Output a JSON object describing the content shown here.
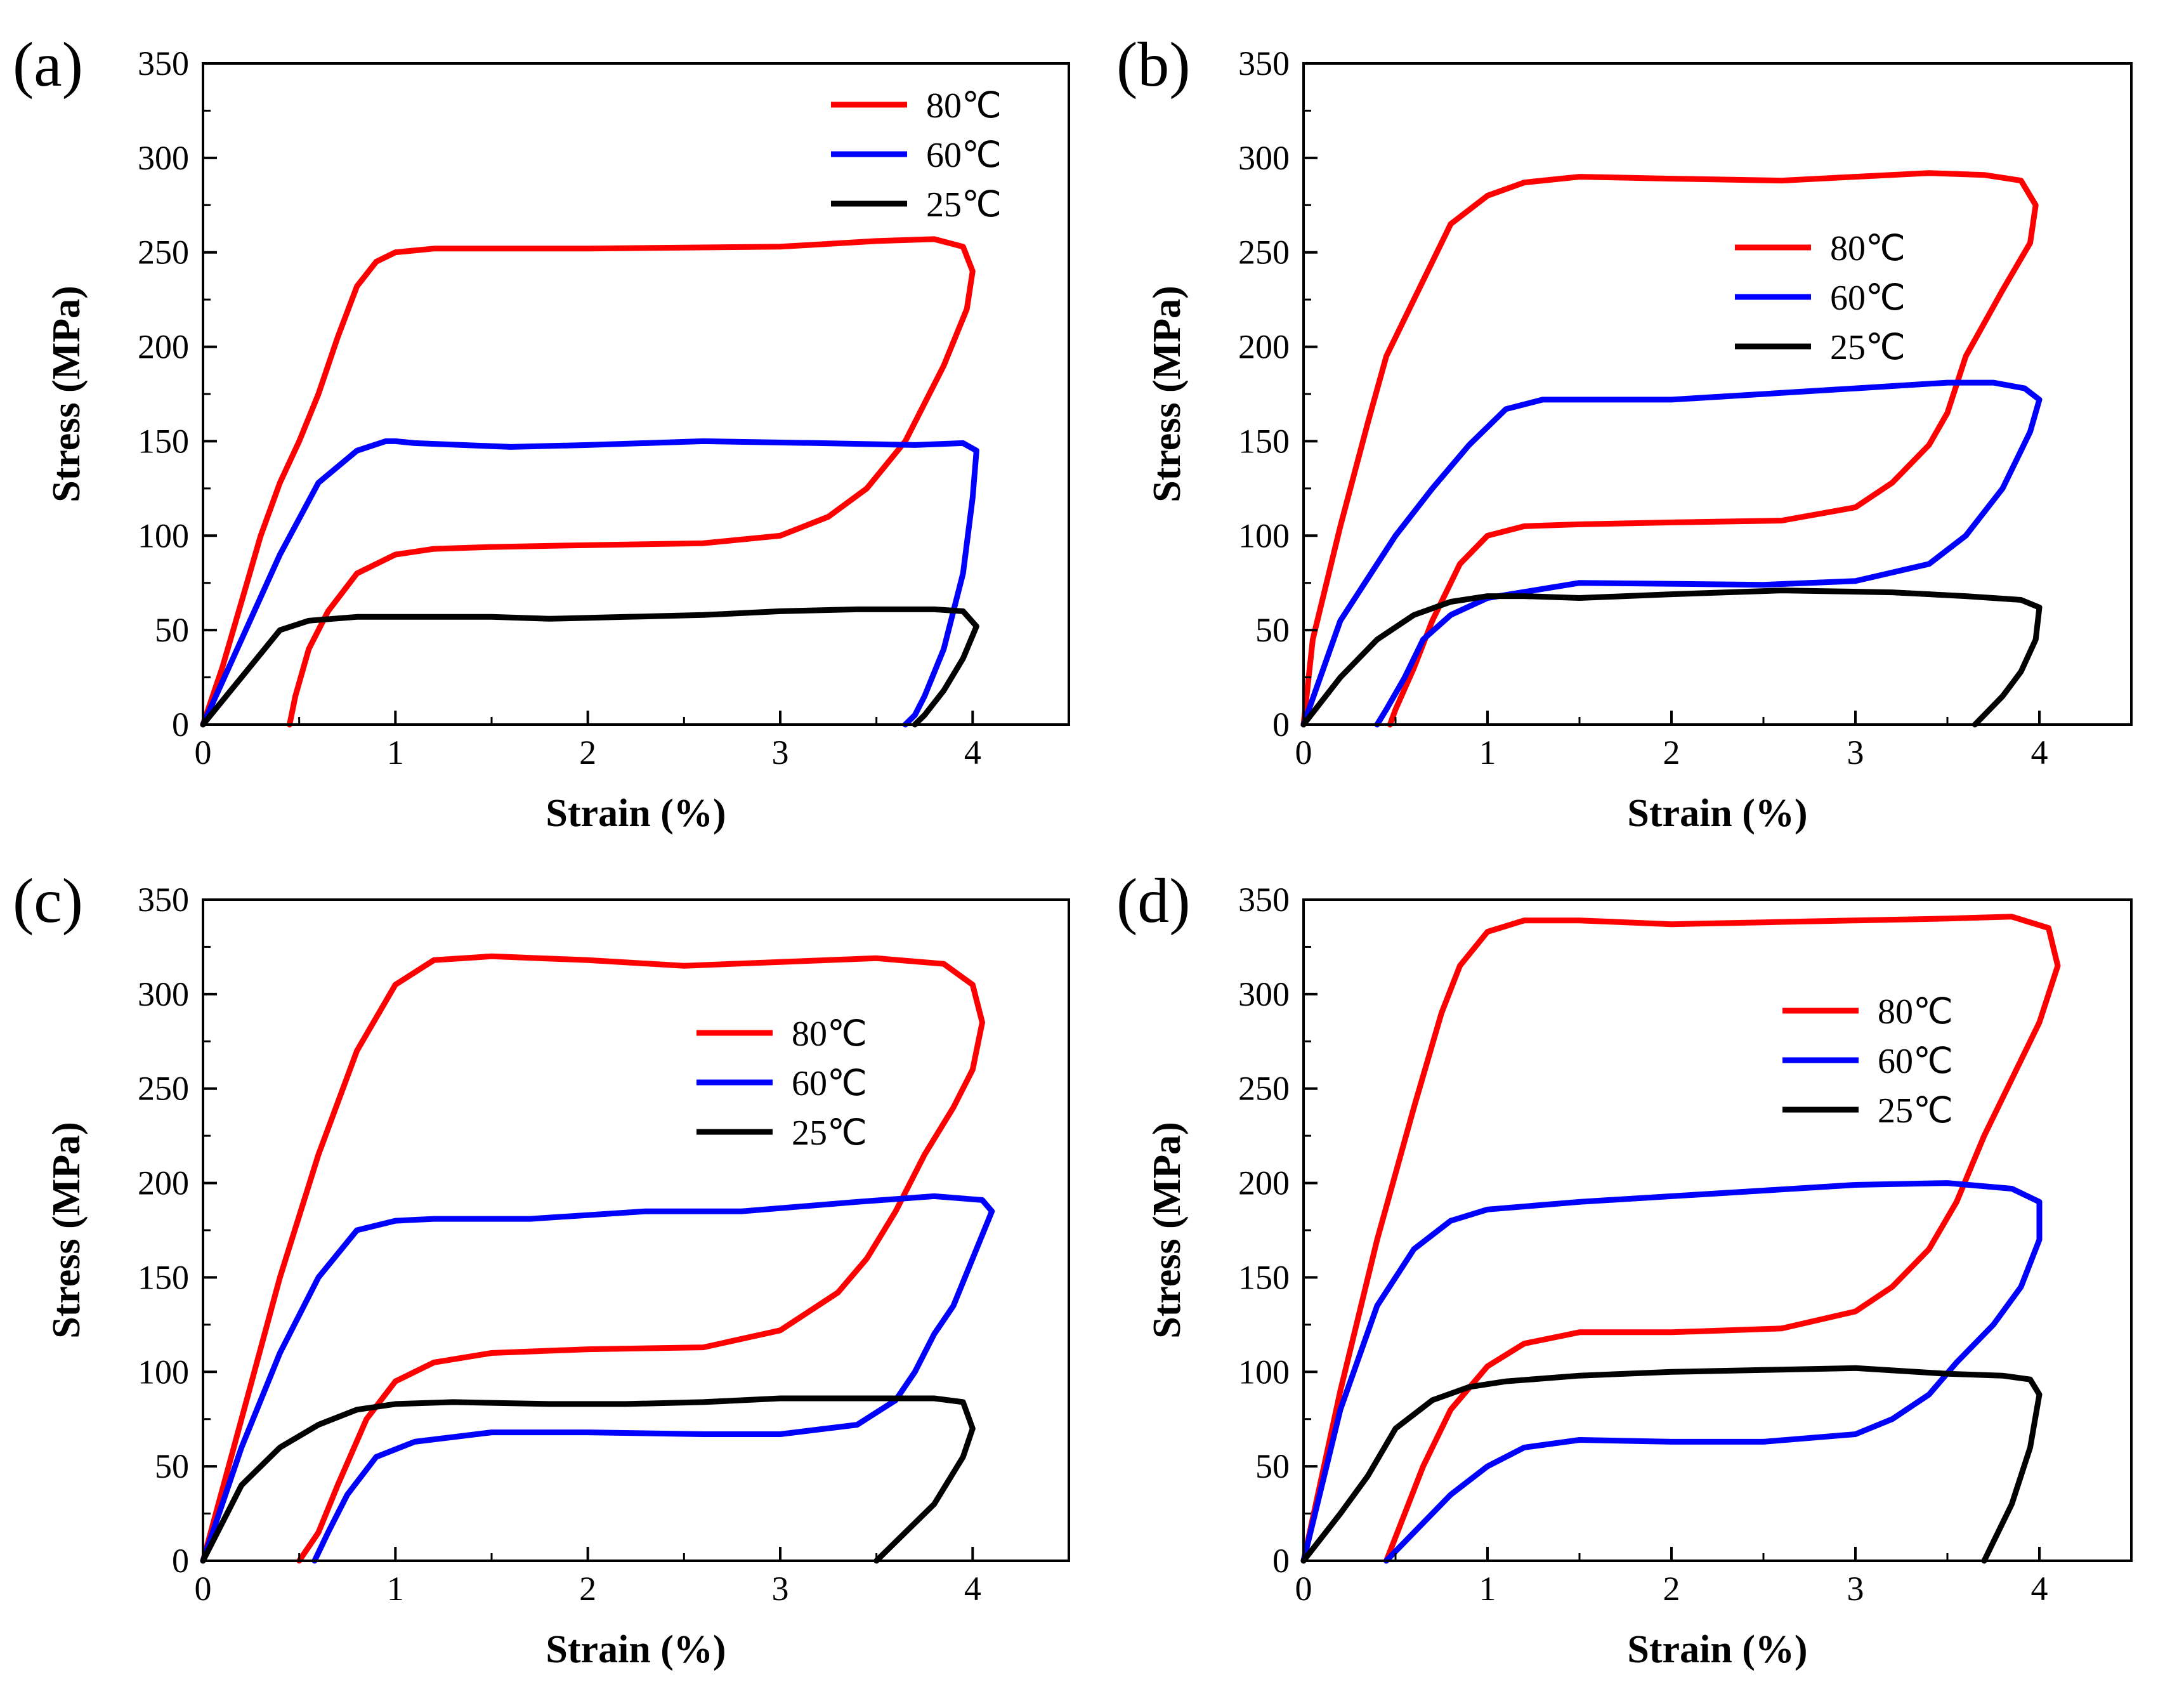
{
  "chart_data": [
    {
      "type": "line",
      "panel_label": "(a)",
      "xlabel": "Strain (%)",
      "ylabel": "Stress (MPa)",
      "xlim": [
        0,
        4.5
      ],
      "ylim": [
        0,
        350
      ],
      "xticks": [
        0,
        1,
        2,
        3,
        4
      ],
      "yticks": [
        0,
        50,
        100,
        150,
        200,
        250,
        300,
        350
      ],
      "legend_position": "top-right",
      "series": [
        {
          "name": "80℃",
          "color": "#ff0000",
          "x": [
            0,
            0.1,
            0.2,
            0.3,
            0.4,
            0.5,
            0.6,
            0.7,
            0.8,
            0.9,
            1.0,
            1.2,
            2.0,
            3.0,
            3.5,
            3.8,
            3.95,
            4.0,
            3.97,
            3.85,
            3.65,
            3.45,
            3.25,
            3.0,
            2.6,
            2.0,
            1.5,
            1.2,
            1.0,
            0.8,
            0.65,
            0.55,
            0.48,
            0.45
          ],
          "y": [
            0,
            30,
            65,
            100,
            128,
            150,
            175,
            205,
            232,
            245,
            250,
            252,
            252,
            253,
            256,
            257,
            253,
            240,
            220,
            190,
            150,
            125,
            110,
            100,
            96,
            95,
            94,
            93,
            90,
            80,
            60,
            40,
            15,
            0
          ]
        },
        {
          "name": "60℃",
          "color": "#0000ff",
          "x": [
            0,
            0.2,
            0.4,
            0.6,
            0.8,
            0.95,
            1.0,
            1.1,
            1.6,
            2.0,
            2.6,
            3.2,
            3.7,
            3.95,
            4.02,
            4.0,
            3.95,
            3.85,
            3.75,
            3.7,
            3.65
          ],
          "y": [
            0,
            45,
            90,
            128,
            145,
            150,
            150,
            149,
            147,
            148,
            150,
            149,
            148,
            149,
            145,
            120,
            80,
            40,
            15,
            5,
            0
          ]
        },
        {
          "name": "25℃",
          "color": "#000000",
          "x": [
            0,
            0.2,
            0.4,
            0.55,
            0.8,
            1.0,
            1.5,
            1.8,
            2.2,
            2.6,
            3.0,
            3.4,
            3.8,
            3.95,
            4.02,
            3.95,
            3.85,
            3.75,
            3.7
          ],
          "y": [
            0,
            25,
            50,
            55,
            57,
            57,
            57,
            56,
            57,
            58,
            60,
            61,
            61,
            60,
            52,
            35,
            18,
            5,
            0
          ]
        }
      ]
    },
    {
      "type": "line",
      "panel_label": "(b)",
      "xlabel": "Strain (%)",
      "ylabel": "Stress (MPa)",
      "xlim": [
        0,
        4.5
      ],
      "ylim": [
        0,
        350
      ],
      "xticks": [
        0,
        1,
        2,
        3,
        4
      ],
      "yticks": [
        0,
        50,
        100,
        150,
        200,
        250,
        300,
        350
      ],
      "legend_position": "upper-right",
      "series": [
        {
          "name": "80℃",
          "color": "#ff0000",
          "x": [
            0,
            0.05,
            0.2,
            0.35,
            0.45,
            0.55,
            0.65,
            0.8,
            1.0,
            1.2,
            1.5,
            2.0,
            2.6,
            3.0,
            3.4,
            3.7,
            3.9,
            3.98,
            3.95,
            3.8,
            3.6,
            3.5,
            3.4,
            3.2,
            3.0,
            2.6,
            2.0,
            1.5,
            1.2,
            1.0,
            0.85,
            0.7,
            0.6,
            0.5,
            0.47
          ],
          "y": [
            0,
            45,
            105,
            160,
            195,
            215,
            235,
            265,
            280,
            287,
            290,
            289,
            288,
            290,
            292,
            291,
            288,
            275,
            255,
            230,
            195,
            165,
            148,
            128,
            115,
            108,
            107,
            106,
            105,
            100,
            85,
            55,
            30,
            8,
            0
          ]
        },
        {
          "name": "60℃",
          "color": "#0000ff",
          "x": [
            0,
            0.2,
            0.5,
            0.7,
            0.9,
            1.1,
            1.3,
            2.0,
            3.0,
            3.5,
            3.75,
            3.92,
            4.0,
            3.95,
            3.8,
            3.6,
            3.4,
            3.0,
            2.5,
            1.5,
            1.0,
            0.8,
            0.65,
            0.55,
            0.45,
            0.4
          ],
          "y": [
            0,
            55,
            100,
            125,
            148,
            167,
            172,
            172,
            178,
            181,
            181,
            178,
            172,
            155,
            125,
            100,
            85,
            76,
            74,
            75,
            67,
            58,
            45,
            25,
            8,
            0
          ]
        },
        {
          "name": "25℃",
          "color": "#000000",
          "x": [
            0,
            0.2,
            0.4,
            0.6,
            0.8,
            1.0,
            1.2,
            1.5,
            2.0,
            2.6,
            3.2,
            3.6,
            3.9,
            4.0,
            3.98,
            3.9,
            3.8,
            3.7,
            3.65
          ],
          "y": [
            0,
            25,
            45,
            58,
            65,
            68,
            68,
            67,
            69,
            71,
            70,
            68,
            66,
            62,
            45,
            28,
            15,
            5,
            0
          ]
        }
      ]
    },
    {
      "type": "line",
      "panel_label": "(c)",
      "xlabel": "Strain (%)",
      "ylabel": "Stress (MPa)",
      "xlim": [
        0,
        4.5
      ],
      "ylim": [
        0,
        350
      ],
      "xticks": [
        0,
        1,
        2,
        3,
        4
      ],
      "yticks": [
        0,
        50,
        100,
        150,
        200,
        250,
        300,
        350
      ],
      "legend_position": "right",
      "series": [
        {
          "name": "80℃",
          "color": "#ff0000",
          "x": [
            0,
            0.2,
            0.4,
            0.6,
            0.8,
            1.0,
            1.2,
            1.5,
            2.0,
            2.5,
            3.0,
            3.5,
            3.85,
            4.0,
            4.05,
            4.0,
            3.9,
            3.75,
            3.6,
            3.45,
            3.3,
            3.0,
            2.6,
            2.0,
            1.5,
            1.2,
            1.0,
            0.85,
            0.7,
            0.6,
            0.5
          ],
          "y": [
            0,
            75,
            150,
            215,
            270,
            305,
            318,
            320,
            318,
            315,
            317,
            319,
            316,
            305,
            285,
            260,
            240,
            215,
            185,
            160,
            142,
            122,
            113,
            112,
            110,
            105,
            95,
            75,
            40,
            15,
            0
          ]
        },
        {
          "name": "60℃",
          "color": "#0000ff",
          "x": [
            0,
            0.2,
            0.4,
            0.6,
            0.8,
            1.0,
            1.2,
            1.7,
            2.3,
            2.8,
            3.4,
            3.8,
            4.05,
            4.1,
            4.0,
            3.9,
            3.8,
            3.7,
            3.6,
            3.4,
            3.0,
            2.6,
            2.0,
            1.5,
            1.1,
            0.9,
            0.75,
            0.65,
            0.58
          ],
          "y": [
            0,
            60,
            110,
            150,
            175,
            180,
            181,
            181,
            185,
            185,
            190,
            193,
            191,
            185,
            160,
            135,
            120,
            100,
            85,
            72,
            67,
            67,
            68,
            68,
            63,
            55,
            35,
            15,
            0
          ]
        },
        {
          "name": "25℃",
          "color": "#000000",
          "x": [
            0,
            0.2,
            0.4,
            0.6,
            0.8,
            1.0,
            1.3,
            1.8,
            2.2,
            2.6,
            3.0,
            3.5,
            3.8,
            3.95,
            4.0,
            3.95,
            3.8,
            3.6,
            3.5
          ],
          "y": [
            0,
            40,
            60,
            72,
            80,
            83,
            84,
            83,
            83,
            84,
            86,
            86,
            86,
            84,
            70,
            55,
            30,
            10,
            0
          ]
        }
      ]
    },
    {
      "type": "line",
      "panel_label": "(d)",
      "xlabel": "Strain (%)",
      "ylabel": "Stress (MPa)",
      "xlim": [
        0,
        4.5
      ],
      "ylim": [
        0,
        350
      ],
      "xticks": [
        0,
        1,
        2,
        3,
        4
      ],
      "yticks": [
        0,
        50,
        100,
        150,
        200,
        250,
        300,
        350
      ],
      "legend_position": "upper-right",
      "series": [
        {
          "name": "80℃",
          "color": "#ff0000",
          "x": [
            0,
            0.2,
            0.4,
            0.6,
            0.75,
            0.85,
            1.0,
            1.2,
            1.5,
            2.0,
            2.5,
            3.0,
            3.5,
            3.85,
            4.05,
            4.1,
            4.0,
            3.85,
            3.7,
            3.55,
            3.4,
            3.2,
            3.0,
            2.6,
            2.0,
            1.5,
            1.2,
            1.0,
            0.8,
            0.65,
            0.55,
            0.45
          ],
          "y": [
            0,
            90,
            170,
            240,
            290,
            315,
            333,
            339,
            339,
            337,
            338,
            339,
            340,
            341,
            335,
            315,
            285,
            255,
            225,
            190,
            165,
            145,
            132,
            123,
            121,
            121,
            115,
            103,
            80,
            50,
            25,
            0
          ]
        },
        {
          "name": "60℃",
          "color": "#0000ff",
          "x": [
            0,
            0.2,
            0.4,
            0.6,
            0.8,
            1.0,
            1.5,
            2.0,
            2.5,
            3.0,
            3.5,
            3.85,
            4.0,
            4.0,
            3.9,
            3.75,
            3.55,
            3.4,
            3.2,
            3.0,
            2.5,
            2.0,
            1.5,
            1.2,
            1.0,
            0.8,
            0.6,
            0.45
          ],
          "y": [
            0,
            80,
            135,
            165,
            180,
            186,
            190,
            193,
            196,
            199,
            200,
            197,
            190,
            170,
            145,
            125,
            105,
            88,
            75,
            67,
            63,
            63,
            64,
            60,
            50,
            35,
            15,
            0
          ]
        },
        {
          "name": "25℃",
          "color": "#000000",
          "x": [
            0,
            0.2,
            0.35,
            0.5,
            0.7,
            0.9,
            1.1,
            1.5,
            2.0,
            2.5,
            3.0,
            3.5,
            3.8,
            3.95,
            4.0,
            3.95,
            3.85,
            3.75,
            3.7
          ],
          "y": [
            0,
            25,
            45,
            70,
            85,
            92,
            95,
            98,
            100,
            101,
            102,
            99,
            98,
            96,
            88,
            60,
            30,
            10,
            0
          ]
        }
      ]
    }
  ]
}
